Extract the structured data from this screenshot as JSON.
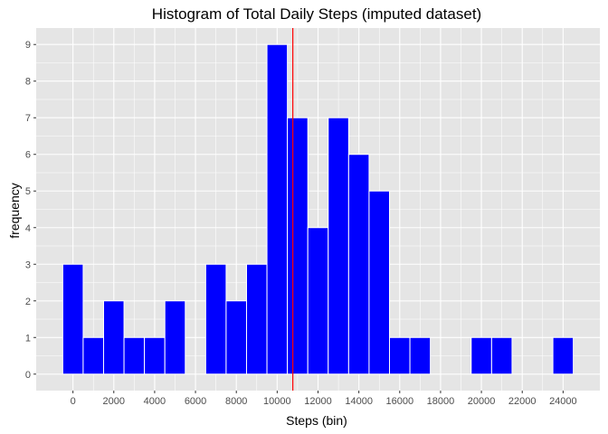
{
  "chart_data": {
    "type": "bar",
    "title": "Histogram of Total Daily Steps (imputed dataset)",
    "xlabel": "Steps (bin)",
    "ylabel": "frequency",
    "bin_width": 1000,
    "bins": [
      {
        "x": 0,
        "count": 3
      },
      {
        "x": 1000,
        "count": 1
      },
      {
        "x": 2000,
        "count": 2
      },
      {
        "x": 3000,
        "count": 1
      },
      {
        "x": 4000,
        "count": 1
      },
      {
        "x": 5000,
        "count": 2
      },
      {
        "x": 6000,
        "count": 0
      },
      {
        "x": 7000,
        "count": 3
      },
      {
        "x": 8000,
        "count": 2
      },
      {
        "x": 9000,
        "count": 3
      },
      {
        "x": 10000,
        "count": 9
      },
      {
        "x": 11000,
        "count": 7
      },
      {
        "x": 12000,
        "count": 4
      },
      {
        "x": 13000,
        "count": 7
      },
      {
        "x": 14000,
        "count": 6
      },
      {
        "x": 15000,
        "count": 5
      },
      {
        "x": 16000,
        "count": 1
      },
      {
        "x": 17000,
        "count": 1
      },
      {
        "x": 18000,
        "count": 0
      },
      {
        "x": 19000,
        "count": 0
      },
      {
        "x": 20000,
        "count": 1
      },
      {
        "x": 21000,
        "count": 1
      },
      {
        "x": 22000,
        "count": 0
      },
      {
        "x": 23000,
        "count": 0
      },
      {
        "x": 24000,
        "count": 1
      }
    ],
    "reference_line": {
      "x": 10766,
      "color": "#ff0000"
    },
    "x_ticks": [
      "0",
      "2000",
      "4000",
      "6000",
      "8000",
      "10000",
      "12000",
      "14000",
      "16000",
      "18000",
      "20000",
      "22000",
      "24000"
    ],
    "y_ticks": [
      "0",
      "1",
      "2",
      "3",
      "4",
      "5",
      "6",
      "7",
      "8",
      "9"
    ],
    "xlim": [
      -1800,
      25800
    ],
    "ylim": [
      -0.45,
      9.45
    ],
    "bar_color": "#0000ff",
    "bar_outline_color": "#ffffff",
    "panel_color": "#e5e5e5",
    "grid_color": "#ffffff",
    "grid": true,
    "legend": "none"
  }
}
